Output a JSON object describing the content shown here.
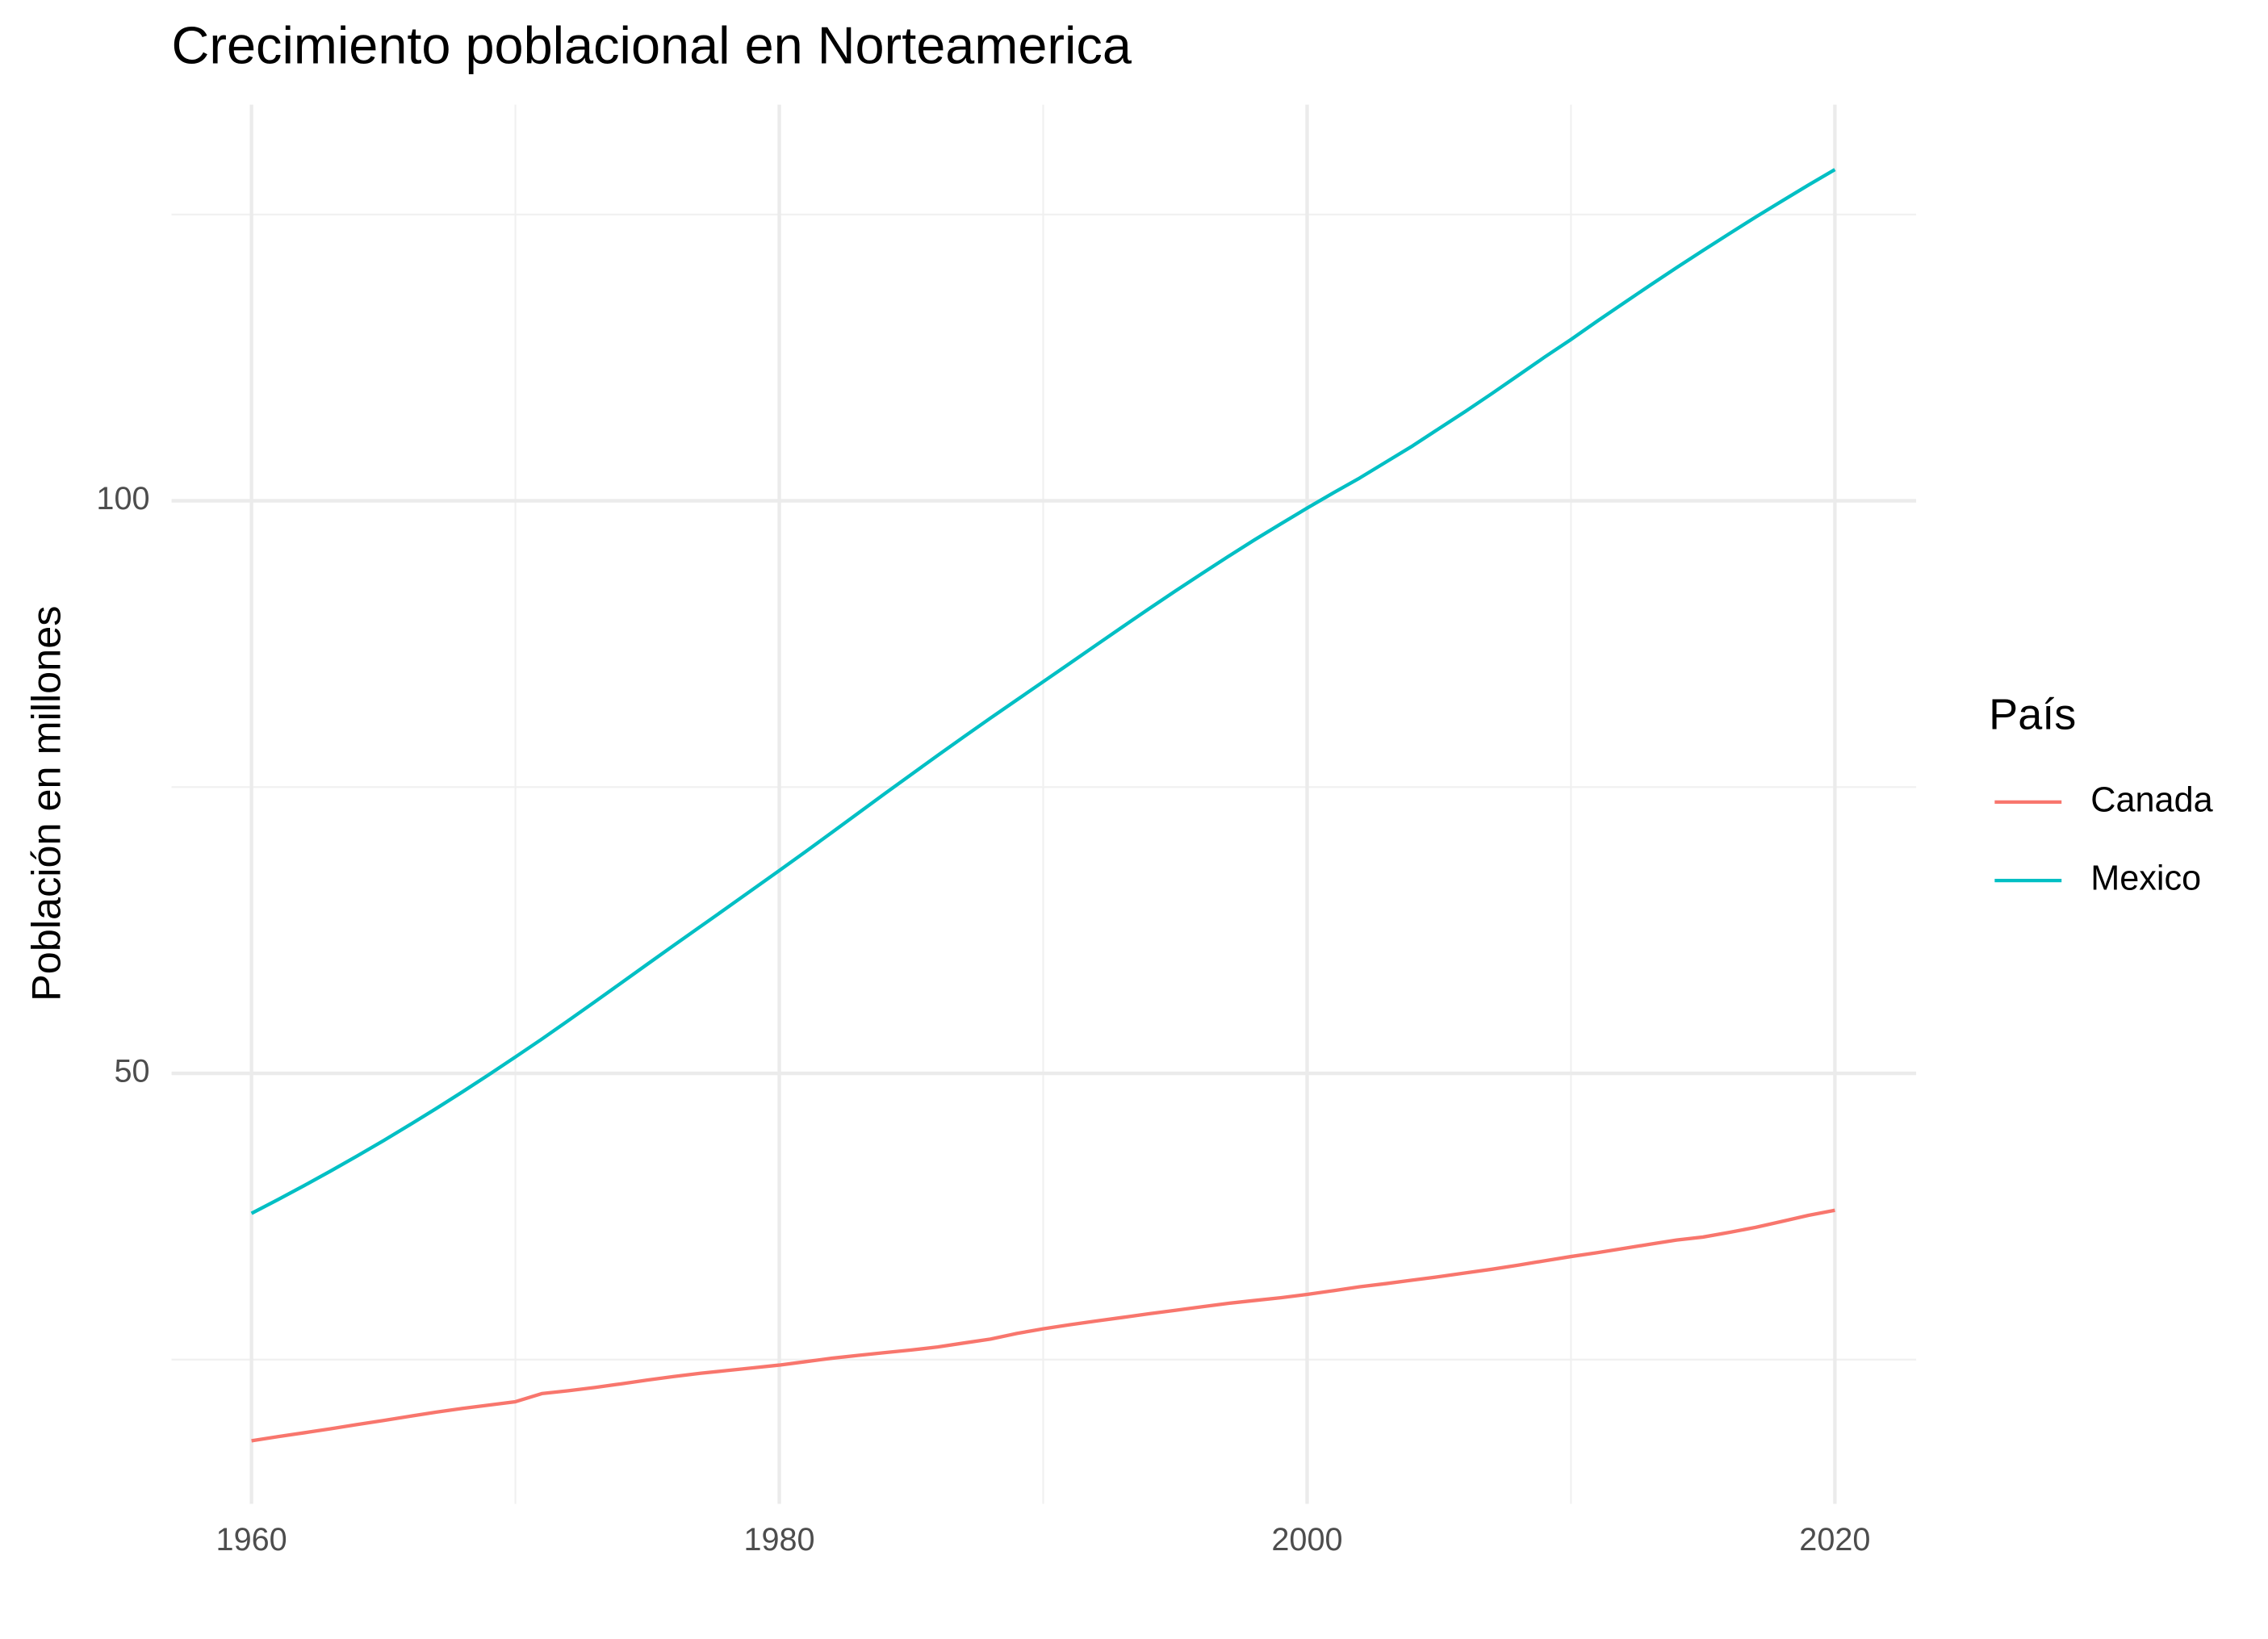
{
  "chart_data": {
    "type": "line",
    "title": "Crecimiento poblacional en Norteamerica",
    "y_label": "Población en millones",
    "legend_title": "País",
    "x": [
      1960,
      1961,
      1962,
      1963,
      1964,
      1965,
      1966,
      1967,
      1968,
      1969,
      1970,
      1971,
      1972,
      1973,
      1974,
      1975,
      1976,
      1977,
      1978,
      1979,
      1980,
      1981,
      1982,
      1983,
      1984,
      1985,
      1986,
      1987,
      1988,
      1989,
      1990,
      1991,
      1992,
      1993,
      1994,
      1995,
      1996,
      1997,
      1998,
      1999,
      2000,
      2001,
      2002,
      2003,
      2004,
      2005,
      2006,
      2007,
      2008,
      2009,
      2010,
      2011,
      2012,
      2013,
      2014,
      2015,
      2016,
      2017,
      2018,
      2019,
      2020
    ],
    "series": [
      {
        "name": "Canada",
        "color": "#F8766D",
        "values": [
          17.91,
          18.27,
          18.61,
          18.96,
          19.33,
          19.68,
          20.05,
          20.41,
          20.74,
          21.03,
          21.32,
          22.03,
          22.28,
          22.56,
          22.88,
          23.21,
          23.52,
          23.8,
          24.04,
          24.28,
          24.52,
          24.82,
          25.12,
          25.37,
          25.61,
          25.84,
          26.1,
          26.45,
          26.79,
          27.28,
          27.69,
          28.04,
          28.37,
          28.68,
          29.0,
          29.3,
          29.61,
          29.91,
          30.16,
          30.4,
          30.69,
          31.02,
          31.36,
          31.64,
          31.94,
          32.24,
          32.57,
          32.89,
          33.25,
          33.63,
          34.0,
          34.34,
          34.71,
          35.08,
          35.44,
          35.7,
          36.11,
          36.55,
          37.07,
          37.6,
          38.04
        ]
      },
      {
        "name": "Mexico",
        "color": "#00BFC4",
        "values": [
          37.77,
          38.97,
          40.2,
          41.47,
          42.78,
          44.12,
          45.51,
          46.93,
          48.39,
          49.89,
          51.43,
          52.99,
          54.6,
          56.23,
          57.88,
          59.53,
          61.17,
          62.8,
          64.43,
          66.07,
          67.71,
          69.37,
          71.05,
          72.74,
          74.43,
          76.1,
          77.76,
          79.4,
          81.02,
          82.61,
          84.2,
          85.79,
          87.39,
          88.98,
          90.56,
          92.11,
          93.62,
          95.12,
          96.58,
          97.98,
          99.36,
          100.7,
          102.0,
          103.4,
          104.8,
          106.31,
          107.81,
          109.36,
          110.95,
          112.55,
          114.09,
          115.7,
          117.27,
          118.83,
          120.36,
          121.86,
          123.33,
          124.78,
          126.19,
          127.58,
          128.93
        ]
      }
    ],
    "xlim": [
      1956.97,
      2023.08
    ],
    "xticks": [
      1960,
      1980,
      2000,
      2020
    ],
    "xminor": [
      1970,
      1990,
      2010
    ],
    "ylim": [
      12.4,
      134.6
    ],
    "yticks": [
      50,
      100
    ],
    "yminor": [
      25,
      75,
      125
    ],
    "grid": true
  }
}
